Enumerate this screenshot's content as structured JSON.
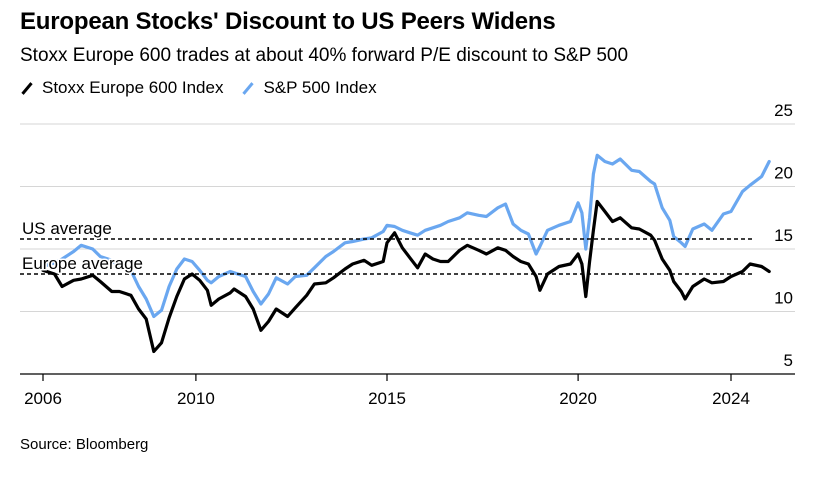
{
  "title": "European Stocks' Discount to US Peers Widens",
  "subtitle": "Stoxx Europe 600 trades at about 40% forward P/E discount to S&P 500",
  "source": "Source: Bloomberg",
  "colors": {
    "europe": "#000000",
    "us": "#6aa7f0"
  },
  "chart_data": {
    "type": "line",
    "title": "European Stocks' Discount to US Peers Widens",
    "subtitle": "Stoxx Europe 600 trades at about 40% forward P/E discount to S&P 500",
    "xlabel": "",
    "ylabel": "",
    "xlim": [
      2006,
      2025
    ],
    "ylim": [
      5,
      25
    ],
    "x_ticks": [
      2006,
      2010,
      2015,
      2020,
      2024
    ],
    "x_tick_labels": [
      "2006",
      "2010",
      "2015",
      "2020",
      "2024"
    ],
    "y_ticks": [
      5,
      10,
      15,
      20,
      25
    ],
    "y_tick_labels": [
      "5",
      "10",
      "15",
      "20",
      "25"
    ],
    "y_axis_side": "right",
    "grid": "horizontal",
    "legend_position": "top-left",
    "reference_lines": [
      {
        "label": "US average",
        "value": 15.8
      },
      {
        "label": "Europe average",
        "value": 13.0
      }
    ],
    "series": [
      {
        "name": "Stoxx Europe 600 Index",
        "color": "#000000",
        "points": [
          [
            2006.0,
            13.3
          ],
          [
            2006.3,
            13.0
          ],
          [
            2006.5,
            12.0
          ],
          [
            2006.8,
            12.5
          ],
          [
            2007.0,
            12.6
          ],
          [
            2007.3,
            12.9
          ],
          [
            2007.5,
            12.4
          ],
          [
            2007.8,
            11.6
          ],
          [
            2008.0,
            11.6
          ],
          [
            2008.3,
            11.3
          ],
          [
            2008.5,
            10.2
          ],
          [
            2008.7,
            9.4
          ],
          [
            2008.9,
            6.8
          ],
          [
            2009.1,
            7.5
          ],
          [
            2009.3,
            9.5
          ],
          [
            2009.5,
            11.2
          ],
          [
            2009.7,
            12.6
          ],
          [
            2009.9,
            13.0
          ],
          [
            2010.1,
            12.5
          ],
          [
            2010.3,
            11.7
          ],
          [
            2010.4,
            10.5
          ],
          [
            2010.6,
            11.0
          ],
          [
            2010.9,
            11.5
          ],
          [
            2011.0,
            11.8
          ],
          [
            2011.3,
            11.2
          ],
          [
            2011.5,
            10.2
          ],
          [
            2011.7,
            8.5
          ],
          [
            2011.9,
            9.2
          ],
          [
            2012.1,
            10.2
          ],
          [
            2012.4,
            9.6
          ],
          [
            2012.6,
            10.3
          ],
          [
            2012.9,
            11.3
          ],
          [
            2013.1,
            12.2
          ],
          [
            2013.4,
            12.3
          ],
          [
            2013.6,
            12.7
          ],
          [
            2013.9,
            13.4
          ],
          [
            2014.1,
            13.8
          ],
          [
            2014.4,
            14.1
          ],
          [
            2014.6,
            13.7
          ],
          [
            2014.9,
            14.0
          ],
          [
            2015.0,
            15.5
          ],
          [
            2015.2,
            16.3
          ],
          [
            2015.4,
            15.1
          ],
          [
            2015.6,
            14.3
          ],
          [
            2015.8,
            13.5
          ],
          [
            2016.0,
            14.6
          ],
          [
            2016.2,
            14.2
          ],
          [
            2016.4,
            14.0
          ],
          [
            2016.6,
            14.0
          ],
          [
            2016.9,
            14.9
          ],
          [
            2017.1,
            15.3
          ],
          [
            2017.4,
            14.9
          ],
          [
            2017.6,
            14.6
          ],
          [
            2017.9,
            15.1
          ],
          [
            2018.1,
            14.9
          ],
          [
            2018.3,
            14.4
          ],
          [
            2018.5,
            14.0
          ],
          [
            2018.7,
            13.8
          ],
          [
            2018.9,
            12.8
          ],
          [
            2019.0,
            11.7
          ],
          [
            2019.2,
            13.0
          ],
          [
            2019.5,
            13.6
          ],
          [
            2019.8,
            13.8
          ],
          [
            2020.0,
            14.6
          ],
          [
            2020.1,
            13.8
          ],
          [
            2020.2,
            11.2
          ],
          [
            2020.3,
            14.0
          ],
          [
            2020.4,
            16.5
          ],
          [
            2020.5,
            18.8
          ],
          [
            2020.7,
            18.0
          ],
          [
            2020.9,
            17.2
          ],
          [
            2021.1,
            17.5
          ],
          [
            2021.4,
            16.7
          ],
          [
            2021.6,
            16.6
          ],
          [
            2021.9,
            16.1
          ],
          [
            2022.0,
            15.7
          ],
          [
            2022.2,
            14.2
          ],
          [
            2022.4,
            13.3
          ],
          [
            2022.5,
            12.4
          ],
          [
            2022.7,
            11.6
          ],
          [
            2022.8,
            11.0
          ],
          [
            2023.0,
            12.0
          ],
          [
            2023.3,
            12.6
          ],
          [
            2023.5,
            12.3
          ],
          [
            2023.8,
            12.4
          ],
          [
            2024.0,
            12.8
          ],
          [
            2024.3,
            13.2
          ],
          [
            2024.5,
            13.8
          ],
          [
            2024.8,
            13.6
          ],
          [
            2025.0,
            13.2
          ]
        ]
      },
      {
        "name": "S&P 500 Index",
        "color": "#6aa7f0",
        "points": [
          [
            2006.0,
            13.6
          ],
          [
            2006.3,
            13.9
          ],
          [
            2006.5,
            14.2
          ],
          [
            2006.8,
            14.8
          ],
          [
            2007.0,
            15.3
          ],
          [
            2007.3,
            15.0
          ],
          [
            2007.5,
            14.4
          ],
          [
            2007.8,
            14.1
          ],
          [
            2008.0,
            13.6
          ],
          [
            2008.3,
            13.3
          ],
          [
            2008.5,
            12.0
          ],
          [
            2008.7,
            11.0
          ],
          [
            2008.9,
            9.6
          ],
          [
            2009.1,
            10.1
          ],
          [
            2009.3,
            12.0
          ],
          [
            2009.5,
            13.4
          ],
          [
            2009.7,
            14.2
          ],
          [
            2009.9,
            14.0
          ],
          [
            2010.1,
            13.3
          ],
          [
            2010.3,
            12.5
          ],
          [
            2010.4,
            12.3
          ],
          [
            2010.6,
            12.8
          ],
          [
            2010.9,
            13.2
          ],
          [
            2011.0,
            13.1
          ],
          [
            2011.3,
            12.8
          ],
          [
            2011.5,
            11.6
          ],
          [
            2011.7,
            10.6
          ],
          [
            2011.9,
            11.4
          ],
          [
            2012.1,
            12.7
          ],
          [
            2012.4,
            12.2
          ],
          [
            2012.6,
            12.8
          ],
          [
            2012.9,
            12.9
          ],
          [
            2013.1,
            13.5
          ],
          [
            2013.4,
            14.4
          ],
          [
            2013.6,
            14.8
          ],
          [
            2013.9,
            15.5
          ],
          [
            2014.1,
            15.6
          ],
          [
            2014.4,
            15.8
          ],
          [
            2014.6,
            15.9
          ],
          [
            2014.9,
            16.4
          ],
          [
            2015.0,
            16.9
          ],
          [
            2015.2,
            16.8
          ],
          [
            2015.4,
            16.5
          ],
          [
            2015.6,
            16.3
          ],
          [
            2015.8,
            16.1
          ],
          [
            2016.0,
            16.5
          ],
          [
            2016.2,
            16.7
          ],
          [
            2016.4,
            16.9
          ],
          [
            2016.6,
            17.2
          ],
          [
            2016.9,
            17.5
          ],
          [
            2017.1,
            17.9
          ],
          [
            2017.4,
            17.7
          ],
          [
            2017.6,
            17.6
          ],
          [
            2017.9,
            18.3
          ],
          [
            2018.1,
            18.6
          ],
          [
            2018.3,
            17.0
          ],
          [
            2018.5,
            16.5
          ],
          [
            2018.7,
            16.2
          ],
          [
            2018.9,
            14.6
          ],
          [
            2019.0,
            15.2
          ],
          [
            2019.2,
            16.5
          ],
          [
            2019.5,
            16.9
          ],
          [
            2019.8,
            17.2
          ],
          [
            2020.0,
            18.7
          ],
          [
            2020.1,
            17.9
          ],
          [
            2020.2,
            15.0
          ],
          [
            2020.3,
            17.5
          ],
          [
            2020.4,
            21.0
          ],
          [
            2020.5,
            22.5
          ],
          [
            2020.7,
            22.0
          ],
          [
            2020.9,
            21.8
          ],
          [
            2021.1,
            22.2
          ],
          [
            2021.4,
            21.3
          ],
          [
            2021.6,
            21.2
          ],
          [
            2021.9,
            20.4
          ],
          [
            2022.0,
            20.2
          ],
          [
            2022.2,
            18.3
          ],
          [
            2022.4,
            17.3
          ],
          [
            2022.5,
            16.0
          ],
          [
            2022.7,
            15.5
          ],
          [
            2022.8,
            15.2
          ],
          [
            2023.0,
            16.6
          ],
          [
            2023.3,
            17.0
          ],
          [
            2023.5,
            16.5
          ],
          [
            2023.8,
            17.8
          ],
          [
            2024.0,
            18.0
          ],
          [
            2024.3,
            19.6
          ],
          [
            2024.5,
            20.1
          ],
          [
            2024.8,
            20.8
          ],
          [
            2025.0,
            22.0
          ]
        ]
      }
    ]
  }
}
